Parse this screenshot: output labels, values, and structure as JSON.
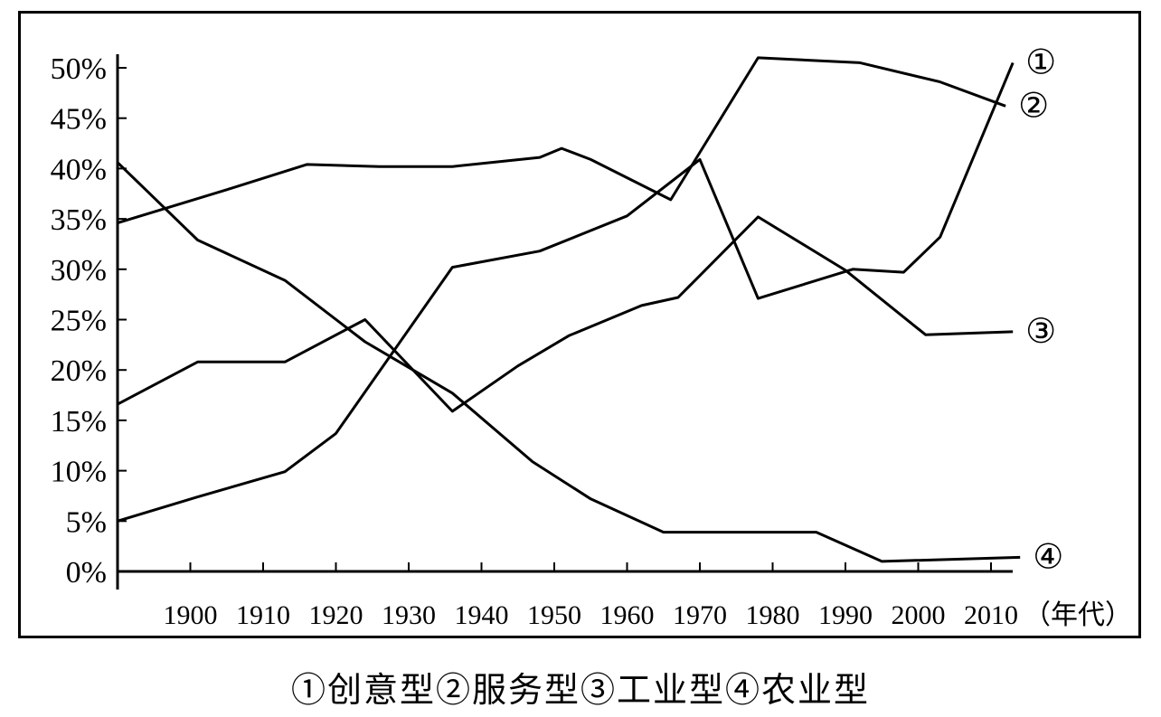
{
  "chart_data": {
    "type": "line",
    "x_unit": "（年代）",
    "x_tick_labels": [
      "1900",
      "1910",
      "1920",
      "1930",
      "1940",
      "1950",
      "1960",
      "1970",
      "1980",
      "1990",
      "2000",
      "2010"
    ],
    "y_tick_labels": [
      "0%",
      "5%",
      "10%",
      "15%",
      "20%",
      "25%",
      "30%",
      "35%",
      "40%",
      "45%",
      "50%"
    ],
    "ylim": [
      0,
      50
    ],
    "xlim": [
      1890,
      2015
    ],
    "grid": false,
    "series": [
      {
        "name": "①",
        "x": [
          1890,
          1901,
          1913,
          1920,
          1936,
          1948,
          1960,
          1970,
          1978,
          1991,
          1998,
          2003,
          2013
        ],
        "y": [
          5.0,
          7.4,
          9.9,
          13.7,
          30.2,
          31.8,
          35.3,
          40.9,
          27.1,
          30.0,
          29.7,
          33.2,
          50.5
        ]
      },
      {
        "name": "②",
        "x": [
          1890,
          1905,
          1916,
          1926,
          1936,
          1948,
          1951,
          1955,
          1966,
          1978,
          1992,
          2003,
          2012
        ],
        "y": [
          34.6,
          37.9,
          40.4,
          40.2,
          40.2,
          41.1,
          42.0,
          40.9,
          36.9,
          51.0,
          50.5,
          48.6,
          46.2
        ]
      },
      {
        "name": "③",
        "x": [
          1890,
          1901,
          1913,
          1924,
          1936,
          1945,
          1952,
          1962,
          1967,
          1978,
          1990,
          2001,
          2013
        ],
        "y": [
          16.6,
          20.8,
          20.8,
          25.0,
          15.9,
          20.4,
          23.4,
          26.4,
          27.2,
          35.2,
          29.9,
          23.5,
          23.8
        ]
      },
      {
        "name": "④",
        "x": [
          1890,
          1901,
          1913,
          1924,
          1936,
          1947,
          1955,
          1965,
          1975,
          1986,
          1995,
          2014
        ],
        "y": [
          40.6,
          32.9,
          28.9,
          22.8,
          17.7,
          10.9,
          7.2,
          3.9,
          3.9,
          3.9,
          1.0,
          1.4
        ]
      }
    ],
    "series_labels": [
      "①",
      "②",
      "③",
      "④"
    ],
    "legend_caption": "①创意型②服务型③工业型④农业型"
  }
}
